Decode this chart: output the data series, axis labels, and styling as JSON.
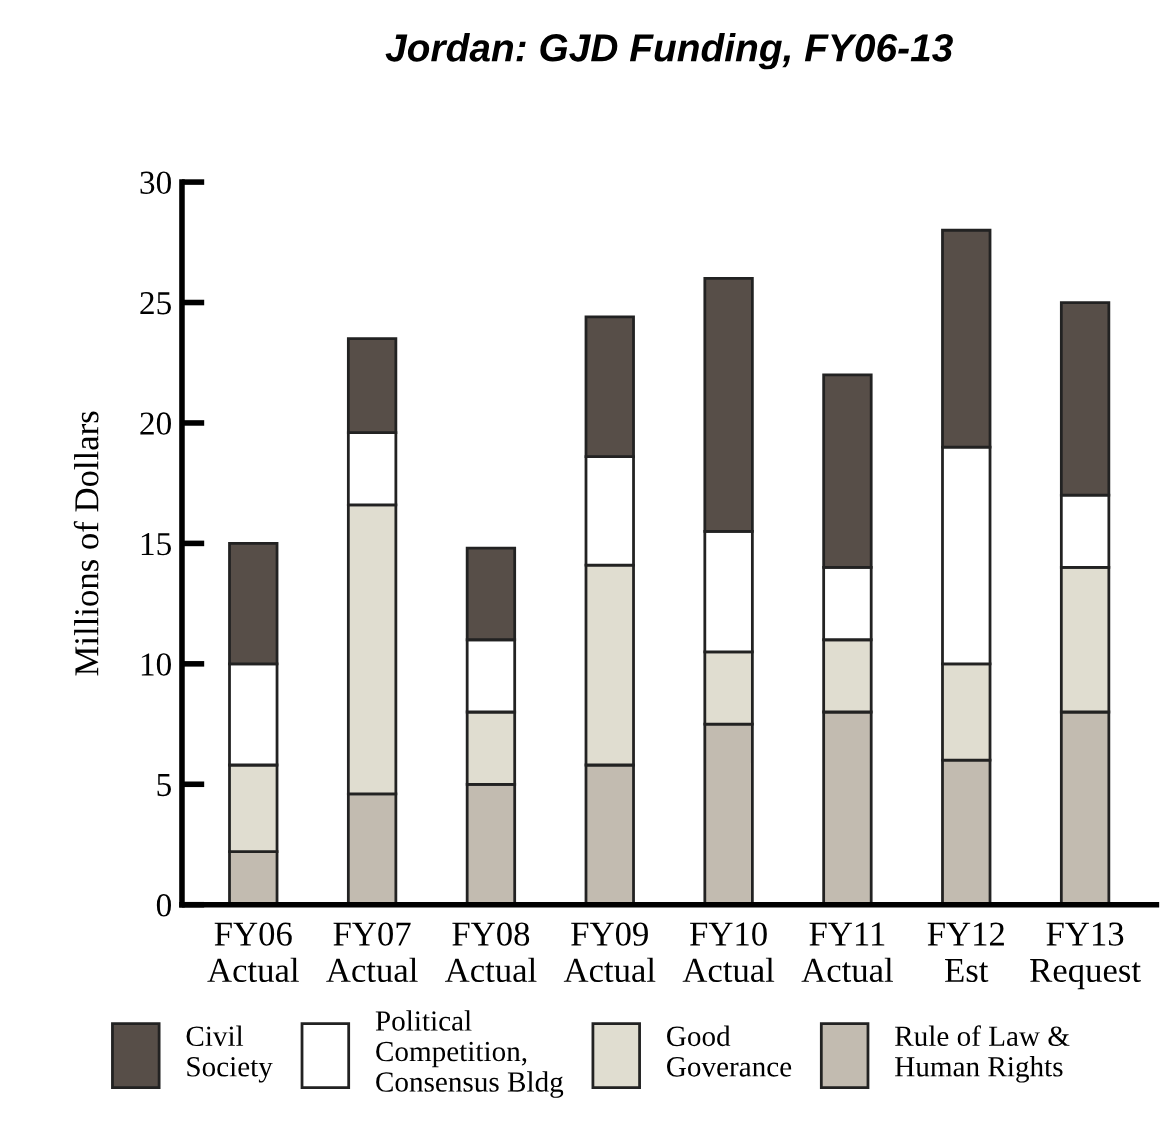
{
  "chart_data": {
    "type": "bar",
    "title": "Jordan: GJD Funding, FY06-13",
    "ylabel": "Millions of Dollars",
    "categories": [
      "FY06\nActual",
      "FY07\nActual",
      "FY08\nActual",
      "FY09\nActual",
      "FY10\nActual",
      "FY11\nActual",
      "FY12\nEst",
      "FY13\nRequest"
    ],
    "stacked": true,
    "series": [
      {
        "name": "Rule of Law &\nHuman Rights",
        "color": "#c2bbb0",
        "values": [
          2.2,
          4.6,
          5.0,
          5.8,
          7.5,
          8.0,
          6.0,
          8.0
        ]
      },
      {
        "name": "Good\nGoverance",
        "color": "#e0ddd0",
        "values": [
          3.6,
          12.0,
          3.0,
          8.3,
          3.0,
          3.0,
          4.0,
          6.0
        ]
      },
      {
        "name": "Political\nCompetition,\nConsensus Bldg",
        "color": "#ffffff",
        "values": [
          4.2,
          3.0,
          3.0,
          4.5,
          5.0,
          3.0,
          9.0,
          3.0
        ]
      },
      {
        "name": "Civil\nSociety",
        "color": "#574e48",
        "values": [
          5.0,
          3.9,
          3.8,
          5.8,
          10.5,
          8.0,
          9.0,
          8.0
        ]
      }
    ],
    "ylim": [
      0,
      30
    ],
    "yticks": [
      0,
      5,
      10,
      15,
      20,
      25,
      30
    ],
    "grid": false,
    "legend": "bottom"
  }
}
